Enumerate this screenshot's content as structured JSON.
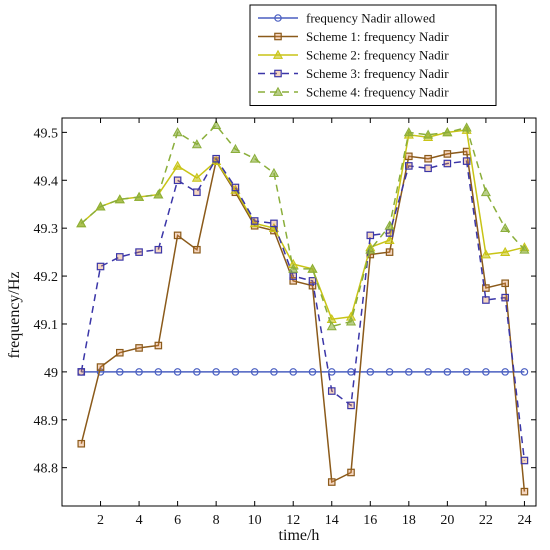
{
  "chart_data": {
    "type": "line",
    "xlabel": "time/h",
    "ylabel": "frequency/Hz",
    "xlim": [
      0,
      24.6
    ],
    "ylim": [
      48.72,
      49.53
    ],
    "x": [
      1,
      2,
      3,
      4,
      5,
      6,
      7,
      8,
      9,
      10,
      11,
      12,
      13,
      14,
      15,
      16,
      17,
      18,
      19,
      20,
      21,
      22,
      23,
      24
    ],
    "xticks": [
      2,
      4,
      6,
      8,
      10,
      12,
      14,
      16,
      18,
      20,
      22,
      24
    ],
    "yticks": [
      48.8,
      48.9,
      49,
      49.1,
      49.2,
      49.3,
      49.4,
      49.5
    ],
    "ytick_labels": [
      "48.8",
      "48.9",
      "49",
      "49.1",
      "49.2",
      "49.3",
      "49.4",
      "49.5"
    ],
    "grid": false,
    "legend_position": "top-right",
    "series": [
      {
        "name": "frequency Nadir allowed",
        "color": "#4a5fc1",
        "marker": "circle",
        "dash": "solid",
        "values": [
          49,
          49,
          49,
          49,
          49,
          49,
          49,
          49,
          49,
          49,
          49,
          49,
          49,
          49,
          49,
          49,
          49,
          49,
          49,
          49,
          49,
          49,
          49,
          49
        ]
      },
      {
        "name": "Scheme 1: frequency Nadir",
        "color": "#8b5a1a",
        "marker": "square",
        "dash": "solid",
        "values": [
          48.85,
          49.01,
          49.04,
          49.05,
          49.055,
          49.285,
          49.255,
          49.44,
          49.375,
          49.305,
          49.295,
          49.19,
          49.18,
          48.77,
          48.79,
          49.245,
          49.25,
          49.45,
          49.445,
          49.455,
          49.46,
          49.175,
          49.185,
          48.75
        ]
      },
      {
        "name": "Scheme 2: frequency Nadir",
        "color": "#c8c416",
        "marker": "triangle",
        "dash": "solid",
        "values": [
          49.31,
          49.345,
          49.36,
          49.365,
          49.37,
          49.43,
          49.405,
          49.44,
          49.38,
          49.31,
          49.3,
          49.225,
          49.215,
          49.11,
          49.115,
          49.26,
          49.275,
          49.495,
          49.49,
          49.5,
          49.505,
          49.245,
          49.25,
          49.26
        ]
      },
      {
        "name": "Scheme 3: frequency Nadir",
        "color": "#3b36a8",
        "marker": "square",
        "dash": "dash",
        "values": [
          49.0,
          49.22,
          49.24,
          49.25,
          49.255,
          49.4,
          49.375,
          49.445,
          49.385,
          49.315,
          49.31,
          49.2,
          49.19,
          48.96,
          48.93,
          49.285,
          49.29,
          49.43,
          49.425,
          49.435,
          49.44,
          49.15,
          49.155,
          48.815
        ]
      },
      {
        "name": "Scheme 4: frequency Nadir",
        "color": "#8aae3a",
        "marker": "triangle",
        "dash": "dash",
        "values": [
          49.31,
          49.345,
          49.36,
          49.365,
          49.37,
          49.5,
          49.475,
          49.515,
          49.465,
          49.445,
          49.415,
          49.215,
          49.215,
          49.095,
          49.105,
          49.255,
          49.305,
          49.5,
          49.495,
          49.5,
          49.51,
          49.375,
          49.3,
          49.255
        ]
      }
    ]
  }
}
